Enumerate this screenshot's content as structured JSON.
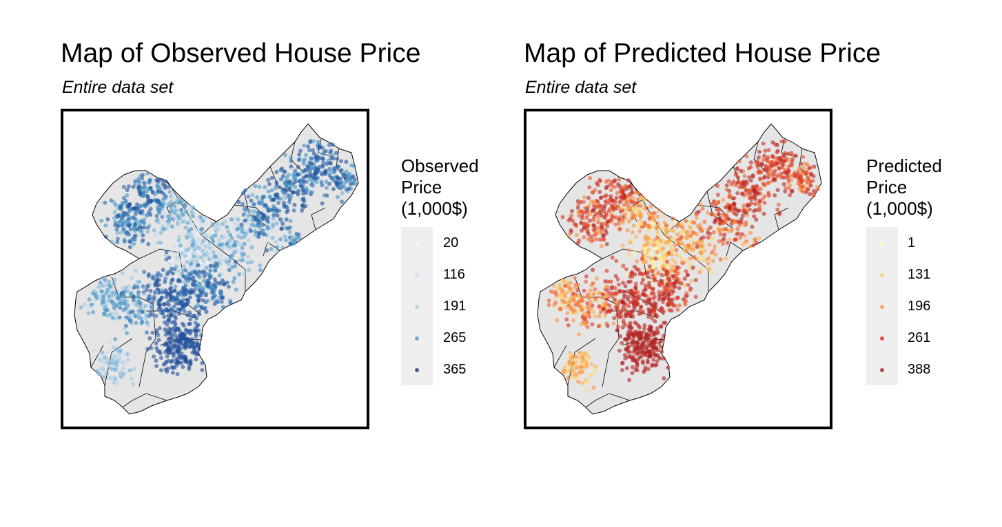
{
  "maps": [
    {
      "id": "observed",
      "title": "Map of Observed House Price",
      "subtitle": "Entire data set",
      "legend": {
        "title": "Observed\nPrice\n(1,000$)",
        "breaks": [
          "20",
          "116",
          "191",
          "265",
          "365"
        ],
        "colors": [
          "#f7fbff",
          "#c6dbef",
          "#9ecae1",
          "#4292c6",
          "#08306b"
        ]
      },
      "palette": [
        "#eaf2fa",
        "#c6dbef",
        "#9ecae1",
        "#6baed6",
        "#4292c6",
        "#2166ac",
        "#1f4e9a"
      ]
    },
    {
      "id": "predicted",
      "title": "Map of Predicted House Price",
      "subtitle": "Entire data set",
      "legend": {
        "title": "Predicted\nPrice\n(1,000$)",
        "breaks": [
          "1",
          "131",
          "196",
          "261",
          "388"
        ],
        "colors": [
          "#ffffb2",
          "#fecc5c",
          "#fd8d3c",
          "#e31a1c",
          "#a50f15"
        ]
      },
      "palette": [
        "#fff3a0",
        "#fed976",
        "#feb24c",
        "#fd8d3c",
        "#ef5a2a",
        "#d7301f",
        "#b22222"
      ]
    }
  ],
  "map_style": {
    "land_fill": "#e5e5e5",
    "boundary_stroke": "#000000",
    "frame_color": "#000000"
  }
}
